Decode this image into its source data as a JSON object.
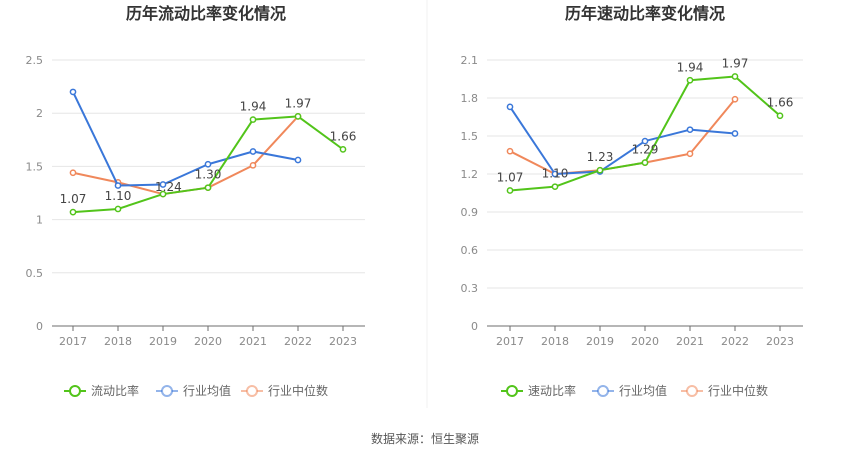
{
  "source_text": "数据来源：恒生聚源",
  "chart_data": [
    {
      "type": "line",
      "title": "历年流动比率变化情况",
      "categories": [
        "2017",
        "2018",
        "2019",
        "2020",
        "2021",
        "2022",
        "2023"
      ],
      "ylim": [
        0,
        2.5
      ],
      "yticks": [
        "0",
        "0.5",
        "1",
        "1.5",
        "2",
        "2.5"
      ],
      "grid": true,
      "legend_position": "bottom",
      "series": [
        {
          "name": "流动比率",
          "color": "#52c41a",
          "values": [
            1.07,
            1.1,
            1.24,
            1.3,
            1.94,
            1.97,
            1.66
          ],
          "labels": [
            "1.07",
            "1.10",
            "1.24",
            "1.30",
            "1.94",
            "1.97",
            "1.66"
          ]
        },
        {
          "name": "行业均值",
          "color": "#3a77d9",
          "values": [
            2.2,
            1.32,
            1.33,
            1.52,
            1.64,
            1.56,
            null
          ]
        },
        {
          "name": "行业中位数",
          "color": "#f0885b",
          "values": [
            1.44,
            1.35,
            1.24,
            1.3,
            1.51,
            1.97,
            null
          ]
        }
      ]
    },
    {
      "type": "line",
      "title": "历年速动比率变化情况",
      "categories": [
        "2017",
        "2018",
        "2019",
        "2020",
        "2021",
        "2022",
        "2023"
      ],
      "ylim": [
        0,
        2.1
      ],
      "yticks": [
        "0",
        "0.3",
        "0.6",
        "0.9",
        "1.2",
        "1.5",
        "1.8",
        "2.1"
      ],
      "grid": true,
      "legend_position": "bottom",
      "series": [
        {
          "name": "速动比率",
          "color": "#52c41a",
          "values": [
            1.07,
            1.1,
            1.23,
            1.29,
            1.94,
            1.97,
            1.66
          ],
          "labels": [
            "1.07",
            "1.10",
            "1.23",
            "1.29",
            "1.94",
            "1.97",
            "1.66"
          ]
        },
        {
          "name": "行业均值",
          "color": "#3a77d9",
          "values": [
            1.73,
            1.2,
            1.22,
            1.46,
            1.55,
            1.52,
            null
          ]
        },
        {
          "name": "行业中位数",
          "color": "#f0885b",
          "values": [
            1.38,
            1.2,
            1.23,
            1.29,
            1.36,
            1.79,
            null
          ]
        }
      ]
    }
  ]
}
